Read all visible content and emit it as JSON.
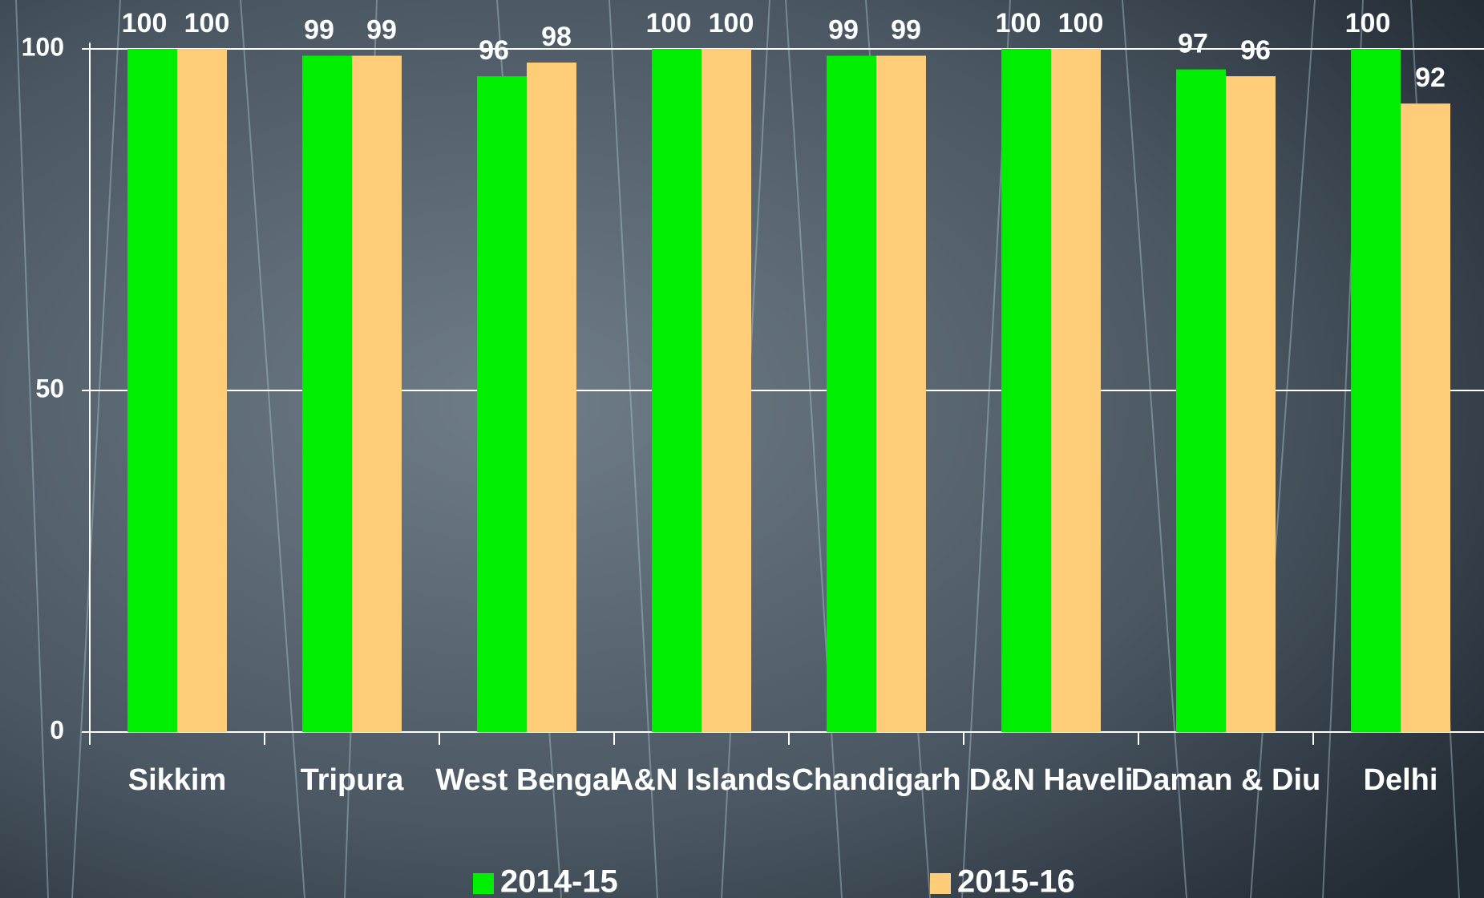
{
  "chart_data": {
    "type": "bar",
    "categories": [
      "Sikkim",
      "Tripura",
      "West Bengal",
      "A&N Islands",
      "Chandigarh",
      "D&N Haveli",
      "Daman & Diu",
      "Delhi"
    ],
    "series": [
      {
        "name": "2014-15",
        "color": "#00ee00",
        "values": [
          100,
          99,
          96,
          100,
          99,
          100,
          97,
          100
        ]
      },
      {
        "name": "2015-16",
        "color": "#ffcc77",
        "values": [
          100,
          99,
          98,
          100,
          99,
          100,
          96,
          92
        ]
      }
    ],
    "ylim": [
      0,
      100
    ],
    "yticks": [
      0,
      50,
      100
    ],
    "grid": true,
    "legend": "bottom"
  }
}
